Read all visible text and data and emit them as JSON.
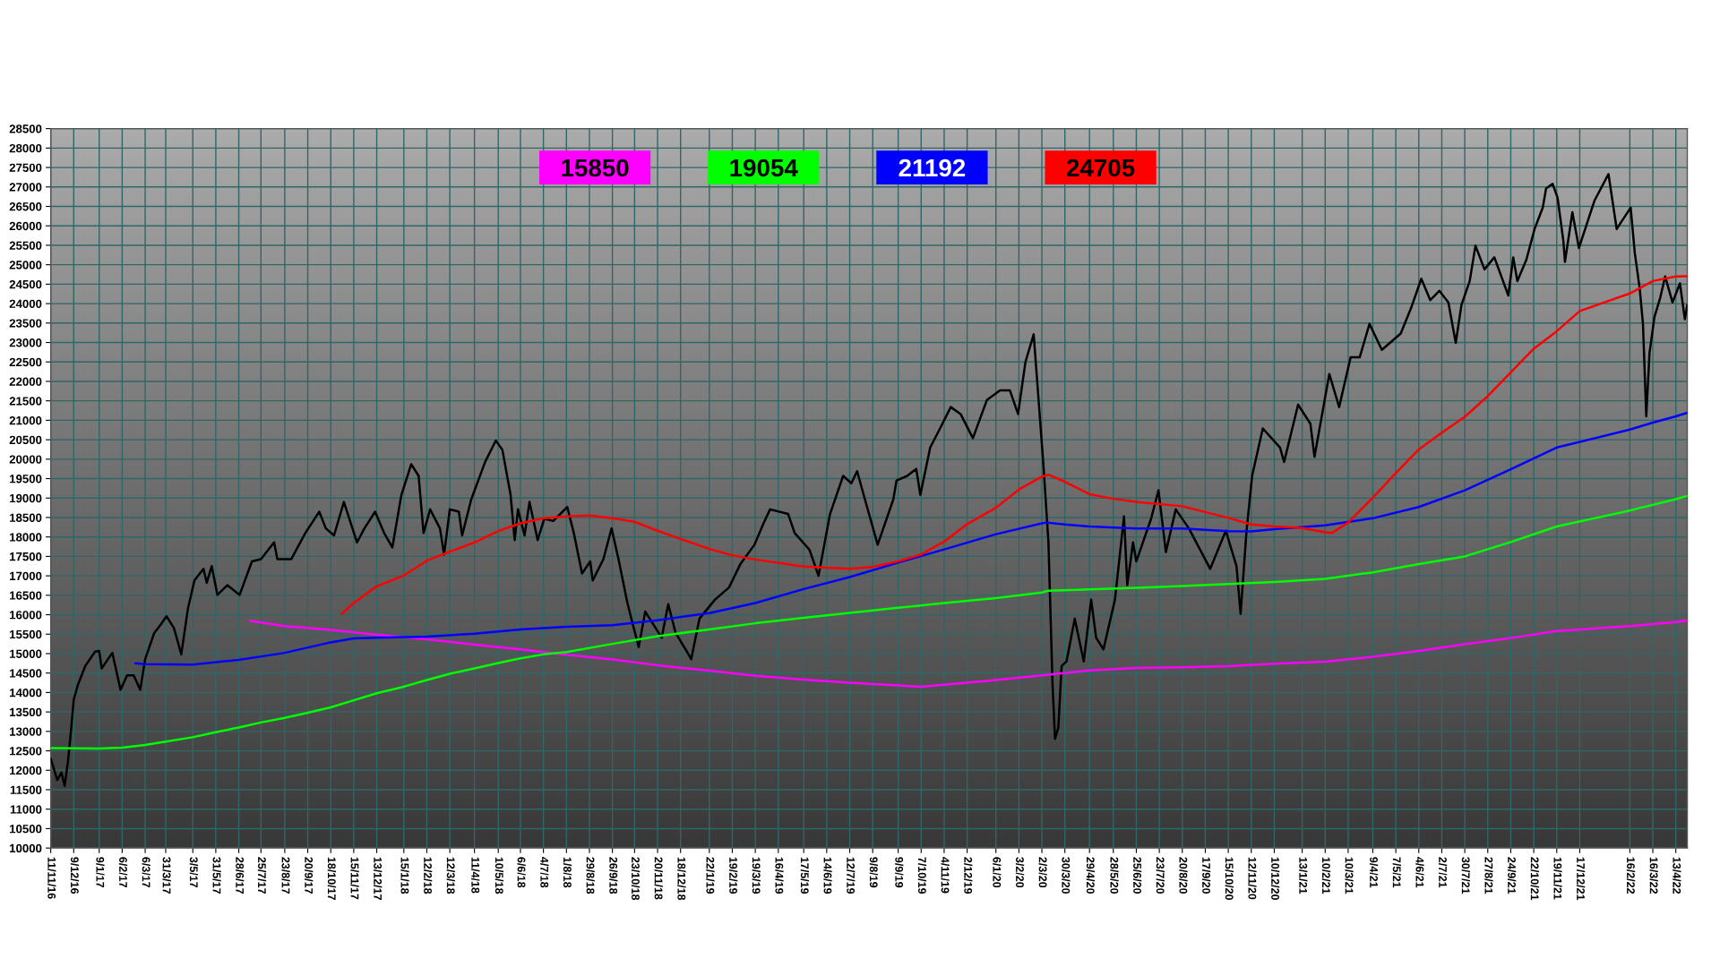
{
  "chart_data": {
    "type": "line",
    "xlim": [
      "2016-11-11",
      "2022-04-27"
    ],
    "ylim": [
      10000,
      28500
    ],
    "xticks": [
      {
        "value": "2016-11-11",
        "label": "11/11/16"
      },
      {
        "value": "2016-12-09",
        "label": "9/12/16"
      },
      {
        "value": "2017-01-09",
        "label": "9/1/17"
      },
      {
        "value": "2017-02-06",
        "label": "6/2/17"
      },
      {
        "value": "2017-03-06",
        "label": "6/3/17"
      },
      {
        "value": "2017-03-31",
        "label": "31/3/17"
      },
      {
        "value": "2017-05-03",
        "label": "3/5/17"
      },
      {
        "value": "2017-05-31",
        "label": "31/5/17"
      },
      {
        "value": "2017-06-28",
        "label": "28/6/17"
      },
      {
        "value": "2017-07-25",
        "label": "25/7/17"
      },
      {
        "value": "2017-08-23",
        "label": "23/8/17"
      },
      {
        "value": "2017-09-20",
        "label": "20/9/17"
      },
      {
        "value": "2017-10-18",
        "label": "18/10/17"
      },
      {
        "value": "2017-11-15",
        "label": "15/11/17"
      },
      {
        "value": "2017-12-13",
        "label": "13/12/17"
      },
      {
        "value": "2018-01-15",
        "label": "15/1/18"
      },
      {
        "value": "2018-02-12",
        "label": "12/2/18"
      },
      {
        "value": "2018-03-12",
        "label": "12/3/18"
      },
      {
        "value": "2018-04-11",
        "label": "11/4/18"
      },
      {
        "value": "2018-05-10",
        "label": "10/5/18"
      },
      {
        "value": "2018-06-06",
        "label": "6/6/18"
      },
      {
        "value": "2018-07-04",
        "label": "4/7/18"
      },
      {
        "value": "2018-08-01",
        "label": "1/8/18"
      },
      {
        "value": "2018-08-29",
        "label": "29/8/18"
      },
      {
        "value": "2018-09-26",
        "label": "26/9/18"
      },
      {
        "value": "2018-10-23",
        "label": "23/10/18"
      },
      {
        "value": "2018-11-20",
        "label": "20/11/18"
      },
      {
        "value": "2018-12-18",
        "label": "18/12/18"
      },
      {
        "value": "2019-01-22",
        "label": "22/1/19"
      },
      {
        "value": "2019-02-19",
        "label": "19/2/19"
      },
      {
        "value": "2019-03-19",
        "label": "19/3/19"
      },
      {
        "value": "2019-04-16",
        "label": "16/4/19"
      },
      {
        "value": "2019-05-17",
        "label": "17/5/19"
      },
      {
        "value": "2019-06-14",
        "label": "14/6/19"
      },
      {
        "value": "2019-07-12",
        "label": "12/7/19"
      },
      {
        "value": "2019-08-09",
        "label": "9/8/19"
      },
      {
        "value": "2019-09-09",
        "label": "9/9/19"
      },
      {
        "value": "2019-10-07",
        "label": "7/10/19"
      },
      {
        "value": "2019-11-04",
        "label": "4/11/19"
      },
      {
        "value": "2019-12-02",
        "label": "2/12/19"
      },
      {
        "value": "2020-01-06",
        "label": "6/1/20"
      },
      {
        "value": "2020-02-03",
        "label": "3/2/20"
      },
      {
        "value": "2020-03-02",
        "label": "2/3/20"
      },
      {
        "value": "2020-03-30",
        "label": "30/3/20"
      },
      {
        "value": "2020-04-29",
        "label": "29/4/20"
      },
      {
        "value": "2020-05-28",
        "label": "28/5/20"
      },
      {
        "value": "2020-06-25",
        "label": "25/6/20"
      },
      {
        "value": "2020-07-23",
        "label": "23/7/20"
      },
      {
        "value": "2020-08-20",
        "label": "20/8/20"
      },
      {
        "value": "2020-09-17",
        "label": "17/9/20"
      },
      {
        "value": "2020-10-15",
        "label": "15/10/20"
      },
      {
        "value": "2020-11-12",
        "label": "12/11/20"
      },
      {
        "value": "2020-12-10",
        "label": "10/12/20"
      },
      {
        "value": "2021-01-13",
        "label": "13/1/21"
      },
      {
        "value": "2021-02-10",
        "label": "10/2/21"
      },
      {
        "value": "2021-03-10",
        "label": "10/3/21"
      },
      {
        "value": "2021-04-09",
        "label": "9/4/21"
      },
      {
        "value": "2021-05-07",
        "label": "7/5/21"
      },
      {
        "value": "2021-06-04",
        "label": "4/6/21"
      },
      {
        "value": "2021-07-02",
        "label": "2/7/21"
      },
      {
        "value": "2021-07-30",
        "label": "30/7/21"
      },
      {
        "value": "2021-08-27",
        "label": "27/8/21"
      },
      {
        "value": "2021-09-24",
        "label": "24/9/21"
      },
      {
        "value": "2021-10-22",
        "label": "22/10/21"
      },
      {
        "value": "2021-11-19",
        "label": "19/11/21"
      },
      {
        "value": "2021-12-17",
        "label": "17/12/21"
      },
      {
        "value": "2022-02-16",
        "label": "16/2/22"
      },
      {
        "value": "2022-03-16",
        "label": "16/3/22"
      },
      {
        "value": "2022-04-13",
        "label": "13/4/22"
      }
    ],
    "yticks": [
      10000,
      10500,
      11000,
      11500,
      12000,
      12500,
      13000,
      13500,
      14000,
      14500,
      15000,
      15500,
      16000,
      16500,
      17000,
      17500,
      18000,
      18500,
      19000,
      19500,
      20000,
      20500,
      21000,
      21500,
      22000,
      22500,
      23000,
      23500,
      24000,
      24500,
      25000,
      25500,
      26000,
      26500,
      27000,
      27500,
      28000,
      28500
    ],
    "grid": true,
    "legend": "top",
    "series": [
      {
        "color": "#000000",
        "x": [
          "2016-11-11",
          "2016-11-19",
          "2016-11-24",
          "2016-11-28",
          "2016-12-02",
          "2016-12-06",
          "2016-12-09",
          "2016-12-14",
          "2016-12-23",
          "2017-01-04",
          "2017-01-09",
          "2017-01-12",
          "2017-01-25",
          "2017-02-04",
          "2017-02-12",
          "2017-02-20",
          "2017-02-28",
          "2017-03-06",
          "2017-03-17",
          "2017-03-24",
          "2017-04-01",
          "2017-04-10",
          "2017-04-19",
          "2017-04-27",
          "2017-05-05",
          "2017-05-16",
          "2017-05-20",
          "2017-05-26",
          "2017-06-02",
          "2017-06-14",
          "2017-06-29",
          "2017-07-14",
          "2017-07-25",
          "2017-08-10",
          "2017-08-14",
          "2017-08-31",
          "2017-09-17",
          "2017-10-04",
          "2017-10-12",
          "2017-10-22",
          "2017-11-03",
          "2017-11-19",
          "2017-11-28",
          "2017-12-11",
          "2017-12-22",
          "2018-01-01",
          "2018-01-12",
          "2018-01-24",
          "2018-02-02",
          "2018-02-08",
          "2018-02-16",
          "2018-02-28",
          "2018-03-05",
          "2018-03-12",
          "2018-03-23",
          "2018-03-27",
          "2018-04-07",
          "2018-04-24",
          "2018-05-07",
          "2018-05-15",
          "2018-05-25",
          "2018-05-30",
          "2018-06-03",
          "2018-06-11",
          "2018-06-17",
          "2018-06-27",
          "2018-07-05",
          "2018-07-16",
          "2018-08-02",
          "2018-08-10",
          "2018-08-20",
          "2018-08-30",
          "2018-09-02",
          "2018-09-15",
          "2018-09-25",
          "2018-10-04",
          "2018-10-14",
          "2018-10-19",
          "2018-10-28",
          "2018-11-05",
          "2018-11-25",
          "2018-12-03",
          "2018-12-12",
          "2018-12-24",
          "2018-12-31",
          "2019-01-10",
          "2019-01-29",
          "2019-02-15",
          "2019-03-01",
          "2019-03-18",
          "2019-03-29",
          "2019-04-06",
          "2019-04-28",
          "2019-05-06",
          "2019-05-24",
          "2019-06-04",
          "2019-06-18",
          "2019-07-04",
          "2019-07-14",
          "2019-07-21",
          "2019-07-29",
          "2019-08-15",
          "2019-09-03",
          "2019-09-07",
          "2019-09-20",
          "2019-10-01",
          "2019-10-06",
          "2019-10-18",
          "2019-10-30",
          "2019-11-12",
          "2019-11-24",
          "2019-12-09",
          "2019-12-26",
          "2020-01-11",
          "2020-01-23",
          "2020-02-02",
          "2020-02-11",
          "2020-02-21",
          "2020-02-27",
          "2020-03-04",
          "2020-03-10",
          "2020-03-15",
          "2020-03-18",
          "2020-03-22",
          "2020-03-26",
          "2020-04-01",
          "2020-04-11",
          "2020-04-22",
          "2020-05-01",
          "2020-05-07",
          "2020-05-16",
          "2020-05-30",
          "2020-06-10",
          "2020-06-14",
          "2020-06-21",
          "2020-06-25",
          "2020-07-13",
          "2020-07-22",
          "2020-07-31",
          "2020-08-12",
          "2020-08-28",
          "2020-09-23",
          "2020-10-12",
          "2020-10-25",
          "2020-10-30",
          "2020-11-06",
          "2020-11-13",
          "2020-11-26",
          "2020-12-17",
          "2020-12-22",
          "2021-01-08",
          "2021-01-23",
          "2021-01-28",
          "2021-02-15",
          "2021-02-27",
          "2021-03-13",
          "2021-03-24",
          "2021-04-05",
          "2021-04-20",
          "2021-05-13",
          "2021-05-26",
          "2021-06-07",
          "2021-06-18",
          "2021-06-29",
          "2021-07-10",
          "2021-07-19",
          "2021-07-26",
          "2021-08-05",
          "2021-08-12",
          "2021-08-23",
          "2021-09-04",
          "2021-09-21",
          "2021-09-27",
          "2021-10-02",
          "2021-10-13",
          "2021-10-23",
          "2021-11-02",
          "2021-11-06",
          "2021-11-14",
          "2021-11-20",
          "2021-11-27",
          "2021-11-29",
          "2021-12-08",
          "2021-12-16",
          "2022-01-04",
          "2022-01-21",
          "2022-01-31",
          "2022-02-17",
          "2022-02-22",
          "2022-02-28",
          "2022-03-04",
          "2022-03-08",
          "2022-03-12",
          "2022-03-18",
          "2022-03-25",
          "2022-03-31",
          "2022-04-09",
          "2022-04-18",
          "2022-04-24",
          "2022-04-27"
        ],
        "values": [
          12300,
          11750,
          11940,
          11600,
          12230,
          13090,
          13820,
          14190,
          14680,
          15050,
          15070,
          14620,
          15020,
          14070,
          14440,
          14440,
          14070,
          14860,
          15530,
          15720,
          15960,
          15660,
          14980,
          16150,
          16880,
          17180,
          16820,
          17250,
          16510,
          16760,
          16510,
          17370,
          17430,
          17860,
          17430,
          17430,
          18100,
          18650,
          18220,
          18040,
          18900,
          17860,
          18220,
          18650,
          18100,
          17730,
          19080,
          19870,
          19570,
          18100,
          18710,
          18220,
          17550,
          18710,
          18650,
          18040,
          18960,
          19930,
          20480,
          20240,
          19080,
          17920,
          18710,
          18040,
          18900,
          17920,
          18470,
          18410,
          18770,
          18100,
          17060,
          17370,
          16880,
          17430,
          18220,
          17370,
          16330,
          15900,
          15170,
          16080,
          15410,
          16270,
          15530,
          15110,
          14860,
          15900,
          16390,
          16700,
          17310,
          17800,
          18350,
          18710,
          18590,
          18100,
          17670,
          17000,
          18590,
          19570,
          19380,
          19690,
          19080,
          17800,
          18960,
          19450,
          19570,
          19750,
          19080,
          20300,
          20790,
          21340,
          21160,
          20540,
          21520,
          21770,
          21770,
          21160,
          22500,
          23210,
          21520,
          19810,
          17860,
          14190,
          12810,
          13090,
          14680,
          14800,
          15900,
          14800,
          16390,
          15410,
          15110,
          16390,
          18530,
          16760,
          17860,
          17370,
          18470,
          19200,
          17610,
          18710,
          18220,
          17180,
          18160,
          17250,
          16020,
          18100,
          19570,
          20790,
          20300,
          19930,
          21400,
          20910,
          20060,
          22190,
          21340,
          22620,
          22620,
          23480,
          22810,
          23230,
          23910,
          24640,
          24090,
          24330,
          24030,
          22990,
          23970,
          24580,
          25490,
          24880,
          25190,
          24210,
          25190,
          24580,
          25130,
          25920,
          26470,
          26960,
          27080,
          26720,
          25620,
          25070,
          26350,
          25430,
          26650,
          27330,
          25920,
          26470,
          25310,
          24390,
          23480,
          21100,
          22740,
          23660,
          24150,
          24700,
          24030,
          24520,
          23600,
          23970
        ]
      },
      {
        "name": "15850",
        "color": "#ff00ff",
        "x": [
          "2017-07-12",
          "2017-08-23",
          "2017-10-18",
          "2017-12-13",
          "2018-02-12",
          "2018-04-11",
          "2018-06-06",
          "2018-08-01",
          "2018-09-26",
          "2018-11-20",
          "2019-01-22",
          "2019-03-19",
          "2019-05-17",
          "2019-07-12",
          "2019-09-09",
          "2019-10-07",
          "2019-11-04",
          "2020-01-06",
          "2020-03-02",
          "2020-04-29",
          "2020-06-25",
          "2020-08-20",
          "2020-10-15",
          "2020-12-10",
          "2021-02-10",
          "2021-04-09",
          "2021-06-04",
          "2021-07-30",
          "2021-09-24",
          "2021-11-19",
          "2022-02-16",
          "2022-04-13",
          "2022-04-27"
        ],
        "values": [
          15840,
          15710,
          15610,
          15490,
          15370,
          15230,
          15110,
          14970,
          14850,
          14700,
          14560,
          14430,
          14330,
          14250,
          14180,
          14150,
          14200,
          14320,
          14440,
          14570,
          14630,
          14650,
          14680,
          14740,
          14790,
          14920,
          15070,
          15240,
          15400,
          15580,
          15710,
          15810,
          15850
        ]
      },
      {
        "name": "19054",
        "color": "#00ff00",
        "x": [
          "2016-11-11",
          "2017-01-09",
          "2017-02-06",
          "2017-03-06",
          "2017-03-31",
          "2017-05-03",
          "2017-05-31",
          "2017-06-28",
          "2017-07-25",
          "2017-08-23",
          "2017-09-20",
          "2017-10-18",
          "2017-11-15",
          "2017-12-13",
          "2018-01-15",
          "2018-02-12",
          "2018-03-12",
          "2018-04-11",
          "2018-05-10",
          "2018-06-06",
          "2018-07-04",
          "2018-08-01",
          "2018-09-26",
          "2018-11-20",
          "2019-01-22",
          "2019-03-19",
          "2019-05-17",
          "2019-07-12",
          "2019-09-09",
          "2019-11-04",
          "2020-01-06",
          "2020-03-02",
          "2020-03-10",
          "2020-04-29",
          "2020-06-25",
          "2020-08-20",
          "2020-10-15",
          "2020-12-10",
          "2021-02-10",
          "2021-04-09",
          "2021-06-04",
          "2021-07-30",
          "2021-09-24",
          "2021-11-19",
          "2022-02-16",
          "2022-04-13",
          "2022-04-27"
        ],
        "values": [
          12570,
          12560,
          12580,
          12650,
          12740,
          12850,
          12980,
          13100,
          13230,
          13350,
          13480,
          13620,
          13800,
          13980,
          14150,
          14320,
          14480,
          14620,
          14760,
          14880,
          14980,
          15040,
          15250,
          15450,
          15620,
          15780,
          15920,
          16050,
          16180,
          16300,
          16430,
          16570,
          16620,
          16650,
          16690,
          16740,
          16790,
          16840,
          16920,
          17090,
          17300,
          17500,
          17870,
          18270,
          18680,
          18970,
          19054
        ]
      },
      {
        "name": "21192",
        "color": "#0000ff",
        "x": [
          "2017-02-22",
          "2017-03-06",
          "2017-05-03",
          "2017-06-28",
          "2017-08-23",
          "2017-10-18",
          "2017-11-15",
          "2017-12-13",
          "2018-02-12",
          "2018-04-11",
          "2018-06-06",
          "2018-08-01",
          "2018-09-26",
          "2018-11-20",
          "2019-01-22",
          "2019-03-19",
          "2019-05-17",
          "2019-07-12",
          "2019-09-09",
          "2019-11-04",
          "2020-01-06",
          "2020-03-02",
          "2020-03-08",
          "2020-03-30",
          "2020-04-29",
          "2020-06-25",
          "2020-08-20",
          "2020-10-15",
          "2020-11-12",
          "2020-12-10",
          "2021-02-10",
          "2021-04-09",
          "2021-06-04",
          "2021-07-30",
          "2021-09-24",
          "2021-11-19",
          "2022-02-16",
          "2022-03-16",
          "2022-04-13",
          "2022-04-27"
        ],
        "values": [
          14750,
          14730,
          14720,
          14840,
          15020,
          15290,
          15390,
          15410,
          15440,
          15510,
          15620,
          15690,
          15730,
          15860,
          16040,
          16300,
          16660,
          16970,
          17340,
          17680,
          18070,
          18350,
          18370,
          18320,
          18270,
          18220,
          18220,
          18150,
          18140,
          18200,
          18300,
          18480,
          18770,
          19200,
          19740,
          20300,
          20760,
          20940,
          21100,
          21192
        ]
      },
      {
        "name": "24705",
        "color": "#ff0000",
        "x": [
          "2017-10-31",
          "2017-11-15",
          "2017-12-13",
          "2018-01-15",
          "2018-02-12",
          "2018-03-12",
          "2018-04-11",
          "2018-05-10",
          "2018-06-06",
          "2018-07-04",
          "2018-08-01",
          "2018-08-29",
          "2018-09-26",
          "2018-10-23",
          "2018-11-20",
          "2018-12-18",
          "2019-01-22",
          "2019-02-19",
          "2019-03-19",
          "2019-05-17",
          "2019-07-12",
          "2019-08-09",
          "2019-09-09",
          "2019-10-07",
          "2019-11-04",
          "2019-12-02",
          "2020-01-06",
          "2020-02-03",
          "2020-03-02",
          "2020-03-10",
          "2020-03-30",
          "2020-04-29",
          "2020-05-28",
          "2020-06-25",
          "2020-08-20",
          "2020-10-15",
          "2020-11-12",
          "2020-12-10",
          "2021-01-13",
          "2021-02-10",
          "2021-02-18",
          "2021-03-10",
          "2021-04-09",
          "2021-05-07",
          "2021-06-04",
          "2021-07-02",
          "2021-07-30",
          "2021-08-27",
          "2021-09-24",
          "2021-10-22",
          "2021-11-19",
          "2021-12-17",
          "2022-02-16",
          "2022-03-16",
          "2022-04-13",
          "2022-04-27"
        ],
        "values": [
          16020,
          16300,
          16730,
          17010,
          17390,
          17620,
          17860,
          18150,
          18350,
          18480,
          18530,
          18550,
          18480,
          18390,
          18160,
          17950,
          17690,
          17530,
          17420,
          17240,
          17180,
          17230,
          17370,
          17550,
          17880,
          18330,
          18750,
          19220,
          19550,
          19600,
          19420,
          19100,
          18980,
          18900,
          18790,
          18490,
          18320,
          18270,
          18230,
          18120,
          18100,
          18370,
          19010,
          19640,
          20250,
          20680,
          21090,
          21620,
          22230,
          22840,
          23290,
          23810,
          24260,
          24580,
          24700,
          24705
        ]
      }
    ]
  }
}
